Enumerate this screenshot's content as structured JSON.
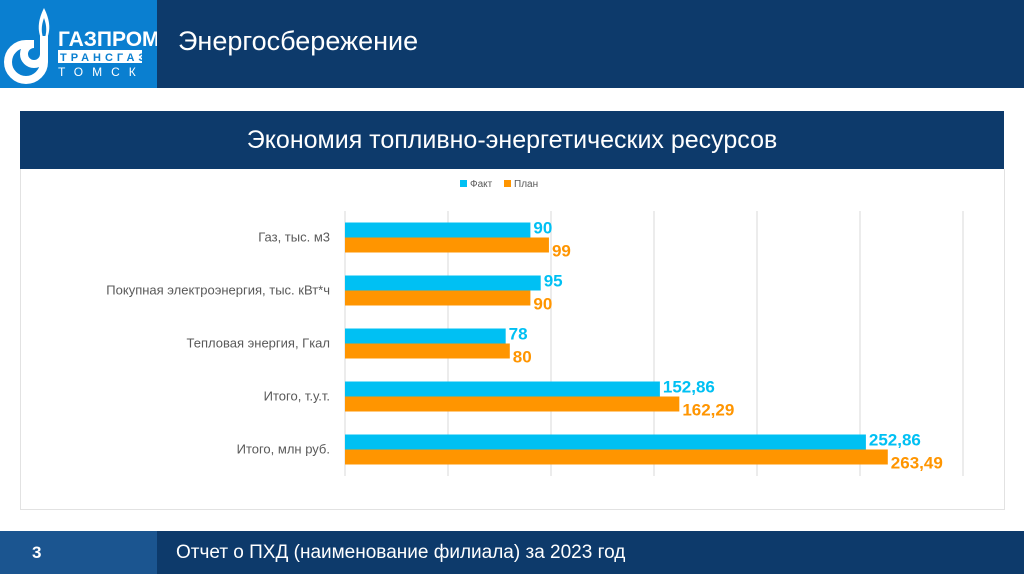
{
  "header": {
    "title": "Энергосбережение",
    "logo_text": [
      "ГАЗПРОМ",
      "ТРАНСГАЗ",
      "ТОМСК"
    ]
  },
  "colors": {
    "navy": "#0d3a6b",
    "logo_blue": "#0a7fd0",
    "fact": "#00c0f3",
    "plan": "#ff9500"
  },
  "chart_data": {
    "type": "bar",
    "orientation": "horizontal",
    "title": "Экономия топливно-энергетических ресурсов",
    "categories": [
      "Газ, тыс. м3",
      "Покупная электроэнергия, тыс. кВт*ч",
      "Тепловая энергия, Гкал",
      "Итого, т.у.т.",
      "Итого, млн руб."
    ],
    "series": [
      {
        "name": "Факт",
        "values": [
          90,
          95,
          78,
          152.86,
          252.86
        ],
        "labels": [
          "90",
          "95",
          "78",
          "152,86",
          "252,86"
        ],
        "color": "#00c0f3"
      },
      {
        "name": "План",
        "values": [
          99,
          90,
          80,
          162.29,
          263.49
        ],
        "labels": [
          "99",
          "90",
          "80",
          "162,29",
          "263,49"
        ],
        "color": "#ff9500"
      }
    ],
    "xlim": [
      0,
      300
    ],
    "grid": true,
    "legend": "top"
  },
  "footer": {
    "page": "3",
    "text": "Отчет о ПХД (наименование филиала) за 2023 год"
  }
}
